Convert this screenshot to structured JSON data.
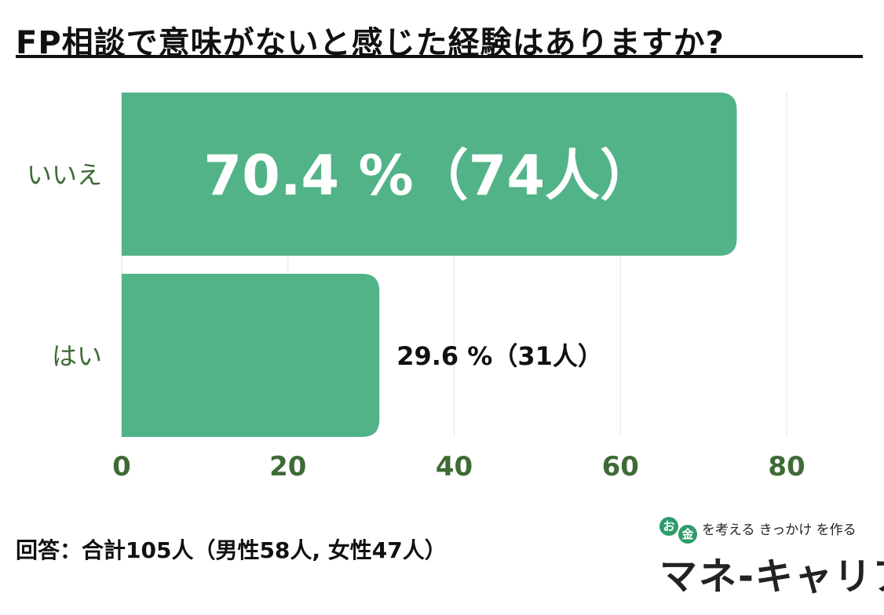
{
  "title": "FP相談で意味がないと感じた経験はありますか?",
  "footer_note": "回答：合計105人（男性58人, 女性47人）",
  "logo": {
    "badge_1": "お",
    "badge_2": "金",
    "tagline": "を考える きっかけ を作る",
    "name": "マネ-キャリア"
  },
  "colors": {
    "bar": "#52b388",
    "axis_text": "#3e6b35",
    "grid": "#e6e6e6",
    "title": "#111111",
    "badge": "#2e9c6b"
  },
  "chart_data": {
    "type": "bar",
    "orientation": "horizontal",
    "title": "FP相談で意味がないと感じた経験はありますか?",
    "categories": [
      "いいえ",
      "はい"
    ],
    "values": [
      74,
      31
    ],
    "data_labels": [
      "70.4 %（74人）",
      "29.6 %（31人）"
    ],
    "xlim": [
      0,
      80
    ],
    "xticks": [
      "0",
      "20",
      "40",
      "60",
      "80"
    ],
    "grid": true
  }
}
